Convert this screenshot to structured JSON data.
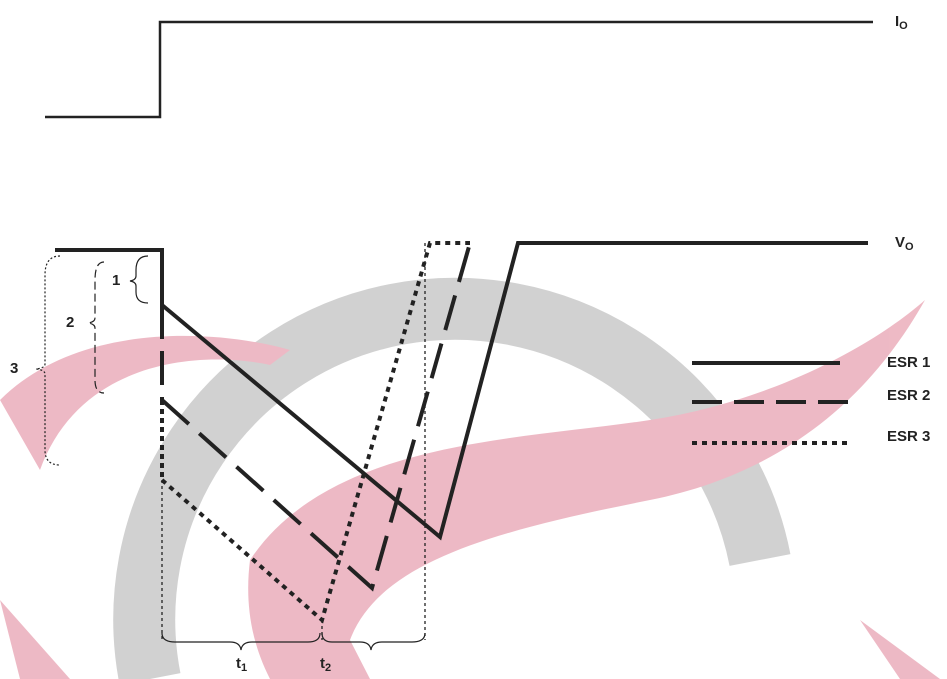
{
  "io_label": {
    "main": "I",
    "sub": "O"
  },
  "vo_label": {
    "main": "V",
    "sub": "O"
  },
  "legend": [
    "ESR 1",
    "ESR 2",
    "ESR 3"
  ],
  "drop_labels": [
    "1",
    "2",
    "3"
  ],
  "time_labels": [
    {
      "main": "t",
      "sub": "1"
    },
    {
      "main": "t",
      "sub": "2"
    }
  ]
}
